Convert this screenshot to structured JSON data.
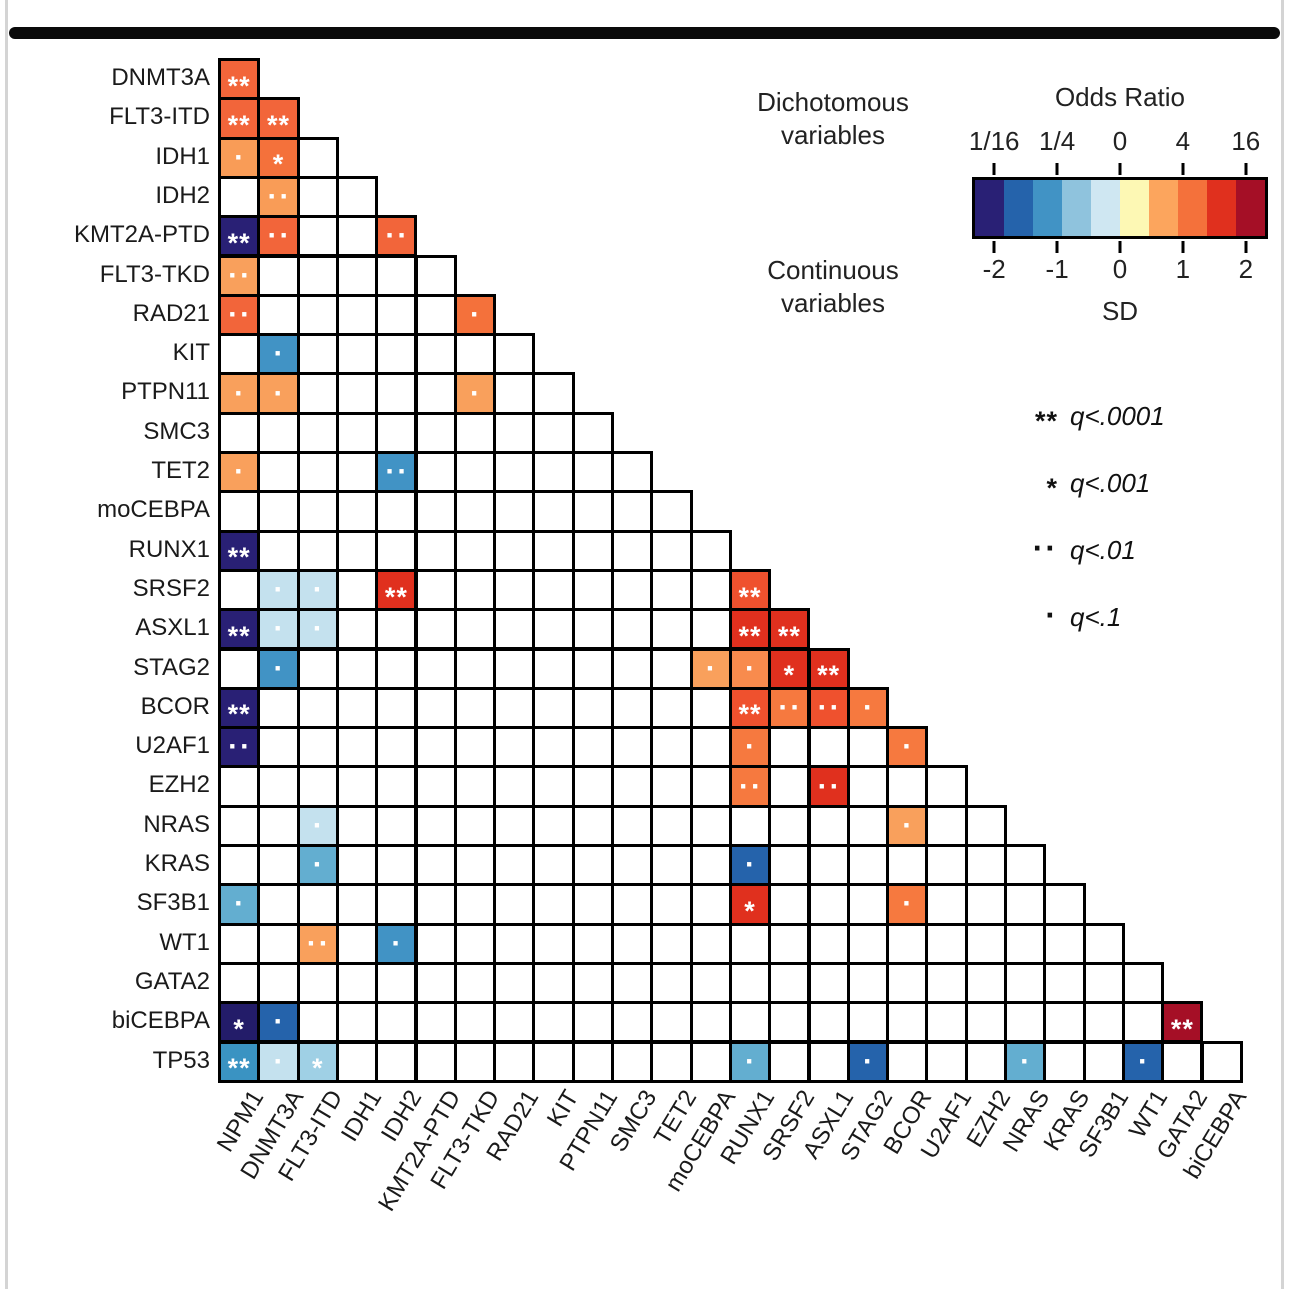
{
  "legend": {
    "dichotomous_line1": "Dichotomous",
    "dichotomous_line2": "variables",
    "continuous_line1": "Continuous",
    "continuous_line2": "variables",
    "significance": [
      {
        "marker": "**",
        "label": "q<.0001"
      },
      {
        "marker": "*",
        "label": "q<.001"
      },
      {
        "marker": "··",
        "label": "q<.01"
      },
      {
        "marker": "·",
        "label": "q<.1"
      }
    ]
  },
  "chart_data": {
    "type": "heatmap",
    "description": "Lower-triangular pairwise gene mutation association matrix; cell color encodes odds ratio (dichotomous variables) / SD (continuous variables); markers encode q-value significance",
    "rows": [
      "DNMT3A",
      "FLT3-ITD",
      "IDH1",
      "IDH2",
      "KMT2A-PTD",
      "FLT3-TKD",
      "RAD21",
      "KIT",
      "PTPN11",
      "SMC3",
      "TET2",
      "moCEBPA",
      "RUNX1",
      "SRSF2",
      "ASXL1",
      "STAG2",
      "BCOR",
      "U2AF1",
      "EZH2",
      "NRAS",
      "KRAS",
      "SF3B1",
      "WT1",
      "GATA2",
      "biCEBPA",
      "TP53"
    ],
    "cols": [
      "NPM1",
      "DNMT3A",
      "FLT3-ITD",
      "IDH1",
      "IDH2",
      "KMT2A-PTD",
      "FLT3-TKD",
      "RAD21",
      "KIT",
      "PTPN11",
      "SMC3",
      "TET2",
      "moCEBPA",
      "RUNX1",
      "SRSF2",
      "ASXL1",
      "STAG2",
      "BCOR",
      "U2AF1",
      "EZH2",
      "NRAS",
      "KRAS",
      "SF3B1",
      "WT1",
      "GATA2",
      "biCEBPA"
    ],
    "colorbar": {
      "title": "Odds Ratio",
      "odds_ticks": [
        "1/16",
        "1/4",
        "0",
        "4",
        "16"
      ],
      "sd_ticks": [
        "-2",
        "-1",
        "0",
        "1",
        "2"
      ],
      "sd_label": "SD",
      "colors": [
        "#292075",
        "#2563ab",
        "#4193c5",
        "#8fc3dd",
        "#cfe7f2",
        "#fdf8b4",
        "#fca55d",
        "#f4713b",
        "#e0301e",
        "#a50f26"
      ]
    },
    "cells": [
      {
        "r": "DNMT3A",
        "c": "NPM1",
        "color": "#f2653a",
        "sig": "**"
      },
      {
        "r": "FLT3-ITD",
        "c": "NPM1",
        "color": "#f2653a",
        "sig": "**"
      },
      {
        "r": "FLT3-ITD",
        "c": "DNMT3A",
        "color": "#f2653a",
        "sig": "**"
      },
      {
        "r": "IDH1",
        "c": "NPM1",
        "color": "#f99c57",
        "sig": "·"
      },
      {
        "r": "IDH1",
        "c": "DNMT3A",
        "color": "#f4713b",
        "sig": "*"
      },
      {
        "r": "IDH2",
        "c": "DNMT3A",
        "color": "#f99c57",
        "sig": "··"
      },
      {
        "r": "KMT2A-PTD",
        "c": "NPM1",
        "color": "#292075",
        "sig": "**"
      },
      {
        "r": "KMT2A-PTD",
        "c": "DNMT3A",
        "color": "#f2653a",
        "sig": "··"
      },
      {
        "r": "KMT2A-PTD",
        "c": "IDH2",
        "color": "#f2653a",
        "sig": "··"
      },
      {
        "r": "FLT3-TKD",
        "c": "NPM1",
        "color": "#f9a05c",
        "sig": "··"
      },
      {
        "r": "RAD21",
        "c": "NPM1",
        "color": "#f2653a",
        "sig": "··"
      },
      {
        "r": "RAD21",
        "c": "FLT3-TKD",
        "color": "#f4713b",
        "sig": "·"
      },
      {
        "r": "KIT",
        "c": "DNMT3A",
        "color": "#4193c5",
        "sig": "·"
      },
      {
        "r": "PTPN11",
        "c": "NPM1",
        "color": "#f9a05c",
        "sig": "·"
      },
      {
        "r": "PTPN11",
        "c": "DNMT3A",
        "color": "#f9a05c",
        "sig": "·"
      },
      {
        "r": "PTPN11",
        "c": "FLT3-TKD",
        "color": "#f9a05c",
        "sig": "·"
      },
      {
        "r": "TET2",
        "c": "NPM1",
        "color": "#f9a05c",
        "sig": "·"
      },
      {
        "r": "TET2",
        "c": "IDH2",
        "color": "#4193c5",
        "sig": "··"
      },
      {
        "r": "RUNX1",
        "c": "NPM1",
        "color": "#292075",
        "sig": "**"
      },
      {
        "r": "SRSF2",
        "c": "DNMT3A",
        "color": "#c4e1ee",
        "sig": "·"
      },
      {
        "r": "SRSF2",
        "c": "FLT3-ITD",
        "color": "#c4e1ee",
        "sig": "·"
      },
      {
        "r": "SRSF2",
        "c": "IDH2",
        "color": "#e0301e",
        "sig": "**"
      },
      {
        "r": "SRSF2",
        "c": "RUNX1",
        "color": "#ef512e",
        "sig": "**"
      },
      {
        "r": "ASXL1",
        "c": "NPM1",
        "color": "#292075",
        "sig": "**"
      },
      {
        "r": "ASXL1",
        "c": "DNMT3A",
        "color": "#c4e1ee",
        "sig": "·"
      },
      {
        "r": "ASXL1",
        "c": "FLT3-ITD",
        "color": "#c4e1ee",
        "sig": "·"
      },
      {
        "r": "ASXL1",
        "c": "RUNX1",
        "color": "#e0301e",
        "sig": "**"
      },
      {
        "r": "ASXL1",
        "c": "SRSF2",
        "color": "#e0301e",
        "sig": "**"
      },
      {
        "r": "STAG2",
        "c": "DNMT3A",
        "color": "#4193c5",
        "sig": "·"
      },
      {
        "r": "STAG2",
        "c": "moCEBPA",
        "color": "#f9a05c",
        "sig": "·"
      },
      {
        "r": "STAG2",
        "c": "RUNX1",
        "color": "#f88b4d",
        "sig": "·"
      },
      {
        "r": "STAG2",
        "c": "SRSF2",
        "color": "#e0301e",
        "sig": "*"
      },
      {
        "r": "STAG2",
        "c": "ASXL1",
        "color": "#e0301e",
        "sig": "**"
      },
      {
        "r": "BCOR",
        "c": "NPM1",
        "color": "#292075",
        "sig": "**"
      },
      {
        "r": "BCOR",
        "c": "RUNX1",
        "color": "#ef512e",
        "sig": "**"
      },
      {
        "r": "BCOR",
        "c": "SRSF2",
        "color": "#f6793f",
        "sig": "··"
      },
      {
        "r": "BCOR",
        "c": "ASXL1",
        "color": "#ef512e",
        "sig": "··"
      },
      {
        "r": "BCOR",
        "c": "STAG2",
        "color": "#f6793f",
        "sig": "·"
      },
      {
        "r": "U2AF1",
        "c": "NPM1",
        "color": "#292075",
        "sig": "··"
      },
      {
        "r": "U2AF1",
        "c": "RUNX1",
        "color": "#f6793f",
        "sig": "·"
      },
      {
        "r": "U2AF1",
        "c": "BCOR",
        "color": "#f6793f",
        "sig": "·"
      },
      {
        "r": "EZH2",
        "c": "RUNX1",
        "color": "#f6793f",
        "sig": "··"
      },
      {
        "r": "EZH2",
        "c": "ASXL1",
        "color": "#e0301e",
        "sig": "··"
      },
      {
        "r": "NRAS",
        "c": "FLT3-ITD",
        "color": "#c4e1ee",
        "sig": "·"
      },
      {
        "r": "NRAS",
        "c": "BCOR",
        "color": "#f9a05c",
        "sig": "·"
      },
      {
        "r": "KRAS",
        "c": "FLT3-ITD",
        "color": "#63aed0",
        "sig": "·"
      },
      {
        "r": "KRAS",
        "c": "RUNX1",
        "color": "#2563ab",
        "sig": "·"
      },
      {
        "r": "SF3B1",
        "c": "NPM1",
        "color": "#63aed0",
        "sig": "·"
      },
      {
        "r": "SF3B1",
        "c": "RUNX1",
        "color": "#e0301e",
        "sig": "*"
      },
      {
        "r": "SF3B1",
        "c": "BCOR",
        "color": "#f6793f",
        "sig": "·"
      },
      {
        "r": "WT1",
        "c": "FLT3-ITD",
        "color": "#f9a05c",
        "sig": "··"
      },
      {
        "r": "WT1",
        "c": "IDH2",
        "color": "#4193c5",
        "sig": "·"
      },
      {
        "r": "biCEBPA",
        "c": "NPM1",
        "color": "#231c69",
        "sig": "*"
      },
      {
        "r": "biCEBPA",
        "c": "DNMT3A",
        "color": "#2563ab",
        "sig": "·"
      },
      {
        "r": "biCEBPA",
        "c": "GATA2",
        "color": "#a50f26",
        "sig": "**"
      },
      {
        "r": "TP53",
        "c": "NPM1",
        "color": "#3a93c2",
        "sig": "**"
      },
      {
        "r": "TP53",
        "c": "DNMT3A",
        "color": "#c4e1ee",
        "sig": "·"
      },
      {
        "r": "TP53",
        "c": "FLT3-ITD",
        "color": "#9fd0e5",
        "sig": "*"
      },
      {
        "r": "TP53",
        "c": "RUNX1",
        "color": "#63aed0",
        "sig": "·"
      },
      {
        "r": "TP53",
        "c": "STAG2",
        "color": "#2563ab",
        "sig": "·"
      },
      {
        "r": "TP53",
        "c": "NRAS",
        "color": "#63aed0",
        "sig": "·"
      },
      {
        "r": "TP53",
        "c": "WT1",
        "color": "#2563ab",
        "sig": "·"
      }
    ]
  }
}
